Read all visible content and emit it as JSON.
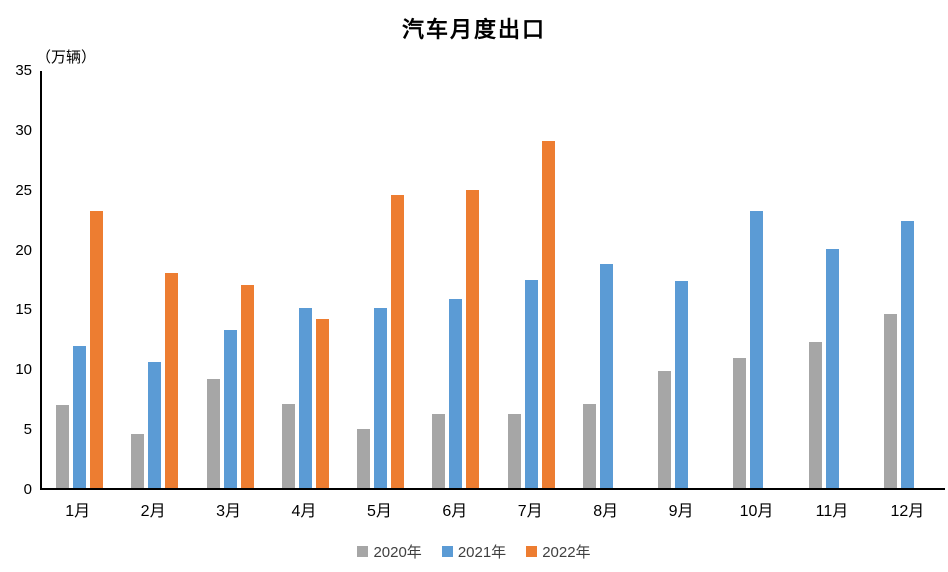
{
  "chart_data": {
    "type": "bar",
    "title": "汽车月度出口",
    "unit_label": "（万辆）",
    "categories": [
      "1月",
      "2月",
      "3月",
      "4月",
      "5月",
      "6月",
      "7月",
      "8月",
      "9月",
      "10月",
      "11月",
      "12月"
    ],
    "series": [
      {
        "name": "2020年",
        "color": "#A6A6A6",
        "values": [
          6.9,
          4.5,
          9.1,
          7.0,
          4.9,
          6.2,
          6.2,
          7.0,
          9.8,
          10.9,
          12.2,
          14.5
        ]
      },
      {
        "name": "2021年",
        "color": "#5B9BD5",
        "values": [
          11.9,
          10.5,
          13.2,
          15.0,
          15.0,
          15.8,
          17.4,
          18.7,
          17.3,
          23.1,
          20.0,
          22.3
        ]
      },
      {
        "name": "2022年",
        "color": "#ED7D31",
        "values": [
          23.1,
          18.0,
          17.0,
          14.1,
          24.5,
          24.9,
          29.0,
          null,
          null,
          null,
          null,
          null
        ]
      }
    ],
    "ylim": [
      0,
      35
    ],
    "yticks": [
      0,
      5,
      10,
      15,
      20,
      25,
      30,
      35
    ],
    "grid": false,
    "legend_position": "bottom",
    "axis_color": "#000000",
    "background_color": "#FFFFFF"
  }
}
